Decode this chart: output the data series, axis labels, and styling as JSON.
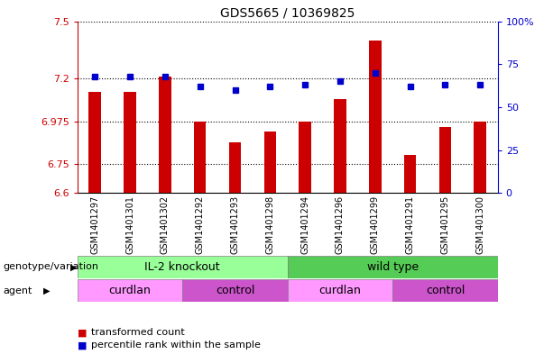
{
  "title": "GDS5665 / 10369825",
  "samples": [
    "GSM1401297",
    "GSM1401301",
    "GSM1401302",
    "GSM1401292",
    "GSM1401293",
    "GSM1401298",
    "GSM1401294",
    "GSM1401296",
    "GSM1401299",
    "GSM1401291",
    "GSM1401295",
    "GSM1401300"
  ],
  "bar_values": [
    7.13,
    7.13,
    7.21,
    6.975,
    6.865,
    6.92,
    6.975,
    7.09,
    7.4,
    6.8,
    6.945,
    6.975
  ],
  "percentile_values": [
    68,
    68,
    68,
    62,
    60,
    62,
    63,
    65,
    70,
    62,
    63,
    63
  ],
  "y_min": 6.6,
  "y_max": 7.5,
  "y_ticks": [
    6.6,
    6.75,
    6.975,
    7.2,
    7.5
  ],
  "y_tick_labels": [
    "6.6",
    "6.75",
    "6.975",
    "7.2",
    "7.5"
  ],
  "right_y_ticks": [
    0,
    25,
    50,
    75,
    100
  ],
  "right_y_tick_labels": [
    "0",
    "25",
    "50",
    "75",
    "100%"
  ],
  "bar_color": "#cc0000",
  "dot_color": "#0000cc",
  "genotype_groups": [
    {
      "label": "IL-2 knockout",
      "start": 0,
      "end": 5,
      "color": "#99ff99"
    },
    {
      "label": "wild type",
      "start": 6,
      "end": 11,
      "color": "#55cc55"
    }
  ],
  "agent_groups": [
    {
      "label": "curdlan",
      "start": 0,
      "end": 2,
      "color": "#ff99ff"
    },
    {
      "label": "control",
      "start": 3,
      "end": 5,
      "color": "#cc66cc"
    },
    {
      "label": "curdlan",
      "start": 6,
      "end": 8,
      "color": "#ff99ff"
    },
    {
      "label": "control",
      "start": 9,
      "end": 11,
      "color": "#cc66cc"
    }
  ],
  "xlabel_genotype": "genotype/variation",
  "xlabel_agent": "agent",
  "legend_items": [
    {
      "color": "#cc0000",
      "label": "transformed count"
    },
    {
      "color": "#0000cc",
      "label": "percentile rank within the sample"
    }
  ]
}
